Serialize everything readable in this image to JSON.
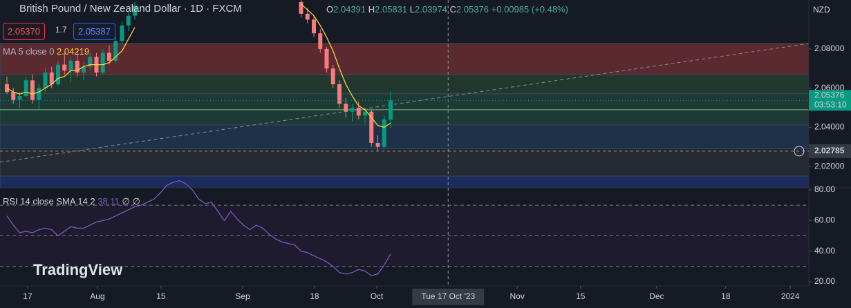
{
  "chart_data": {
    "type": "candlestick",
    "title": "British Pound / New Zealand Dollar · 1D · FXCM",
    "ohlc": {
      "o_label": "O",
      "o": "2.04391",
      "h_label": "H",
      "h": "2.05831",
      "l_label": "L",
      "l": "2.03974",
      "c_label": "C",
      "c": "2.05376",
      "change": "+0.00985 (+0.48%)"
    },
    "sell": "2.05370",
    "spread": "1.7",
    "buy": "2.05387",
    "ma_legend": "MA 5 close 0",
    "ma_value": "2.04219",
    "rsi_legend": "RSI 14 close SMA 14 2",
    "rsi_value": "38.11",
    "rsi_extra": "∅ ∅",
    "currency": "NZD",
    "logo": "TradingView",
    "categories": [
      null,
      null,
      null,
      null,
      null,
      null,
      null,
      null,
      null,
      null,
      null,
      null,
      null,
      null,
      null,
      null,
      null,
      null,
      null,
      null,
      null,
      null,
      null,
      null,
      null,
      null,
      null,
      null,
      null,
      null,
      null,
      null,
      null,
      null,
      null,
      null,
      null,
      null,
      null,
      null,
      null,
      null,
      null,
      null,
      null,
      null,
      null,
      null,
      null,
      null,
      null,
      null,
      null,
      null,
      null,
      null,
      null,
      null,
      null,
      null,
      null
    ],
    "open": [
      2.062,
      2.058,
      2.054,
      2.056,
      2.064,
      2.054,
      2.06,
      2.068,
      2.062,
      2.072,
      2.069,
      2.074,
      2.068,
      2.071,
      2.076,
      2.068,
      2.078,
      2.074,
      2.084,
      2.092,
      2.097,
      null,
      null,
      null,
      null,
      null,
      null,
      null,
      null,
      null,
      null,
      null,
      null,
      null,
      null,
      null,
      null,
      null,
      null,
      null,
      null,
      null,
      null,
      null,
      null,
      null,
      2.104,
      2.098,
      2.095,
      2.088,
      2.08,
      2.07,
      2.062,
      2.052,
      2.048,
      2.05,
      2.046,
      2.048,
      2.032,
      2.03,
      2.04391
    ],
    "high": [
      2.066,
      2.06,
      2.058,
      2.066,
      2.067,
      2.062,
      2.07,
      2.071,
      2.074,
      2.078,
      2.076,
      2.079,
      2.073,
      2.078,
      2.078,
      2.08,
      2.082,
      2.086,
      2.094,
      2.099,
      2.104,
      null,
      null,
      null,
      null,
      null,
      null,
      null,
      null,
      null,
      null,
      null,
      null,
      null,
      null,
      null,
      null,
      null,
      null,
      null,
      null,
      null,
      null,
      null,
      null,
      null,
      2.106,
      2.101,
      2.097,
      2.09,
      2.081,
      2.072,
      2.064,
      2.055,
      2.052,
      2.053,
      2.05,
      2.049,
      2.036,
      2.046,
      2.05831
    ],
    "low": [
      2.057,
      2.052,
      2.05,
      2.055,
      2.052,
      2.049,
      2.058,
      2.06,
      2.061,
      2.067,
      2.063,
      2.066,
      2.064,
      2.069,
      2.066,
      2.067,
      2.072,
      2.073,
      2.082,
      2.089,
      2.095,
      null,
      null,
      null,
      null,
      null,
      null,
      null,
      null,
      null,
      null,
      null,
      null,
      null,
      null,
      null,
      null,
      null,
      null,
      null,
      null,
      null,
      null,
      null,
      null,
      null,
      2.096,
      2.093,
      2.086,
      2.078,
      2.068,
      2.06,
      2.05,
      2.045,
      2.043,
      2.044,
      2.042,
      2.03,
      2.028,
      2.029,
      2.03974
    ],
    "close": [
      2.058,
      2.054,
      2.056,
      2.064,
      2.054,
      2.06,
      2.068,
      2.062,
      2.072,
      2.069,
      2.074,
      2.068,
      2.071,
      2.076,
      2.068,
      2.078,
      2.074,
      2.084,
      2.092,
      2.097,
      2.102,
      null,
      null,
      null,
      null,
      null,
      null,
      null,
      null,
      null,
      null,
      null,
      null,
      null,
      null,
      null,
      null,
      null,
      null,
      null,
      null,
      null,
      null,
      null,
      null,
      null,
      2.098,
      2.095,
      2.088,
      2.08,
      2.07,
      2.062,
      2.052,
      2.048,
      2.05,
      2.046,
      2.048,
      2.032,
      2.03,
      2.044,
      2.05376
    ],
    "ma": [
      2.06,
      2.058,
      2.057,
      2.058,
      2.057,
      2.058,
      2.06,
      2.062,
      2.065,
      2.066,
      2.069,
      2.069,
      2.071,
      2.072,
      2.072,
      2.072,
      2.073,
      2.076,
      2.079,
      2.085,
      2.091,
      null,
      null,
      null,
      null,
      null,
      null,
      null,
      null,
      null,
      null,
      null,
      null,
      null,
      null,
      null,
      null,
      null,
      null,
      null,
      null,
      null,
      null,
      null,
      null,
      null,
      2.103,
      2.1,
      2.097,
      2.092,
      2.086,
      2.079,
      2.07,
      2.062,
      2.056,
      2.051,
      2.049,
      2.045,
      2.041,
      2.04,
      2.04219
    ],
    "rsi": [
      63,
      57,
      52,
      53,
      52,
      54,
      55,
      54,
      50,
      53,
      56,
      55,
      55,
      57,
      59,
      60,
      61,
      63,
      65,
      67,
      69,
      70,
      72,
      74,
      78,
      83,
      85,
      86,
      84,
      80,
      74,
      71,
      72,
      66,
      60,
      66,
      61,
      57,
      54,
      57,
      55,
      51,
      48,
      46,
      45,
      44,
      40,
      39,
      37,
      35,
      33,
      30,
      26,
      25,
      26,
      28,
      27,
      24,
      25,
      31,
      38.11
    ],
    "up_color": "#089981",
    "down_color": "#f77c80",
    "ma_color": "#f7d23c",
    "rsi_color": "#7e57c2",
    "xlim": [
      -1.08,
      125.4
    ],
    "xticks": [
      {
        "value": 3.24,
        "label": "17"
      },
      {
        "value": 14.16,
        "label": "Aug"
      },
      {
        "value": 24.1,
        "label": "15"
      },
      {
        "value": 36.86,
        "label": "Sep"
      },
      {
        "value": 48.1,
        "label": "18"
      },
      {
        "value": 57.84,
        "label": "Oct"
      },
      {
        "value": 79.8,
        "label": "Nov"
      },
      {
        "value": 89.7,
        "label": "15"
      },
      {
        "value": 101.6,
        "label": "Dec"
      },
      {
        "value": 112.4,
        "label": "18"
      },
      {
        "value": 122.5,
        "label": "2024"
      }
    ],
    "ylim": [
      2.0091,
      2.105
    ],
    "yticks": [
      {
        "value": 2.08,
        "label": "2.08000"
      },
      {
        "value": 2.06,
        "label": "2.06000"
      },
      {
        "value": 2.04,
        "label": "2.04000"
      },
      {
        "value": 2.02,
        "label": "2.02000"
      }
    ],
    "rsi_ylim": [
      17.27,
      81.36
    ],
    "rsi_ticks": [
      {
        "value": 80,
        "label": "80.00"
      },
      {
        "value": 60,
        "label": "60.00"
      },
      {
        "value": 40,
        "label": "40.00"
      },
      {
        "value": 20,
        "label": "20.00"
      }
    ],
    "rsi_levels": [
      70,
      50,
      30
    ],
    "zones": [
      {
        "from": 2.0828,
        "to": 2.0669,
        "color": "#5a2a30"
      },
      {
        "from": 2.0669,
        "to": 2.0571,
        "color": "#22382f"
      },
      {
        "from": 2.0571,
        "to": 2.0412,
        "color": "#1d3a36"
      },
      {
        "from": 2.0412,
        "to": 2.0292,
        "color": "#1f3148"
      },
      {
        "from": 2.0292,
        "to": 2.0151,
        "color": "#262a33"
      },
      {
        "from": 2.0151,
        "to": 2.0091,
        "color": "#1c2a5c"
      }
    ],
    "level": 2.049,
    "trendline": [
      2.0222,
      2.0828
    ],
    "last_price": {
      "value": 2.05376,
      "label": "2.05376",
      "countdown": "03:53:10"
    },
    "crosshair": {
      "value": 2.02785,
      "label": "2.02785",
      "x": 69,
      "date": "Tue 17 Oct '23"
    }
  }
}
